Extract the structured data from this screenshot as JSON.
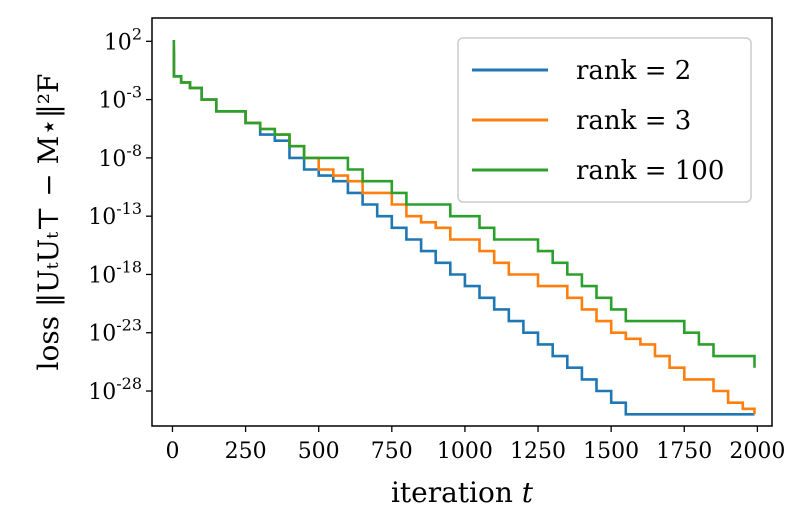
{
  "chart_data": {
    "type": "line",
    "title": "",
    "xlabel": "iteration t",
    "ylabel": "loss ‖UₜUₜ⊤ − M⋆‖²F",
    "ylog": true,
    "xlim": [
      -70,
      2050
    ],
    "ylim": [
      1e-31,
      10000.0
    ],
    "x_ticks": [
      0,
      250,
      500,
      750,
      1000,
      1250,
      1500,
      1750,
      2000
    ],
    "x_tick_labels": [
      "0",
      "250",
      "500",
      "750",
      "1000",
      "1250",
      "1500",
      "1750",
      "2000"
    ],
    "y_ticks": [
      100.0,
      0.001,
      1e-08,
      1e-13,
      1e-18,
      1e-23,
      1e-28
    ],
    "y_tick_labels": [
      {
        "base": "10",
        "exp": "2"
      },
      {
        "base": "10",
        "exp": "-3"
      },
      {
        "base": "10",
        "exp": "-8"
      },
      {
        "base": "10",
        "exp": "-13"
      },
      {
        "base": "10",
        "exp": "-18"
      },
      {
        "base": "10",
        "exp": "-23"
      },
      {
        "base": "10",
        "exp": "-28"
      }
    ],
    "grid": false,
    "legend_position": "top-right",
    "series": [
      {
        "name": "rank = 2",
        "color": "#1f77b4",
        "x": [
          0,
          5,
          30,
          60,
          100,
          150,
          200,
          250,
          300,
          350,
          400,
          450,
          500,
          550,
          600,
          650,
          700,
          750,
          800,
          850,
          900,
          950,
          1000,
          1050,
          1100,
          1150,
          1200,
          1250,
          1300,
          1350,
          1400,
          1450,
          1500,
          1550,
          1600,
          1650,
          1700,
          1750,
          1800,
          1850,
          1900,
          1950,
          1990
        ],
        "y": [
          10.0,
          0.1,
          0.03,
          0.01,
          0.001,
          0.0001,
          0.0001,
          1e-05,
          1e-06,
          3e-07,
          1e-08,
          1e-09,
          3e-10,
          1e-10,
          1e-11,
          1e-12,
          1e-13,
          1e-14,
          1e-15,
          1e-16,
          1e-17,
          1e-18,
          1e-19,
          1e-20,
          1e-21,
          1e-22,
          1e-23,
          1e-24,
          1e-25,
          1e-26,
          1e-27,
          1e-28,
          1e-29,
          1e-30,
          1e-30,
          1e-30,
          1e-30,
          1e-30,
          1e-30,
          1e-30,
          1e-30,
          1e-30,
          1e-30
        ]
      },
      {
        "name": "rank = 3",
        "color": "#ff7f0e",
        "x": [
          0,
          5,
          30,
          60,
          100,
          150,
          200,
          250,
          300,
          350,
          400,
          450,
          500,
          550,
          600,
          650,
          700,
          750,
          800,
          850,
          900,
          950,
          1000,
          1050,
          1100,
          1150,
          1200,
          1250,
          1300,
          1350,
          1400,
          1450,
          1500,
          1550,
          1600,
          1650,
          1700,
          1750,
          1800,
          1850,
          1900,
          1950,
          1990
        ],
        "y": [
          30.0,
          0.1,
          0.03,
          0.01,
          0.001,
          0.0001,
          0.0001,
          1e-05,
          3e-06,
          1e-06,
          1e-07,
          1e-08,
          1e-09,
          3e-10,
          1e-10,
          1e-11,
          1e-11,
          1e-12,
          1e-13,
          3e-14,
          1e-14,
          1e-15,
          1e-15,
          1e-16,
          1e-17,
          1e-18,
          1e-18,
          1e-19,
          1e-19,
          1e-20,
          1e-21,
          1e-22,
          1e-23,
          3e-24,
          1e-24,
          1e-25,
          1e-26,
          1e-27,
          1e-27,
          1e-28,
          1e-29,
          3e-30,
          1e-30
        ]
      },
      {
        "name": "rank = 100",
        "color": "#2ca02c",
        "x": [
          0,
          5,
          30,
          60,
          100,
          150,
          200,
          250,
          300,
          350,
          400,
          450,
          500,
          550,
          600,
          650,
          700,
          750,
          800,
          850,
          900,
          950,
          1000,
          1050,
          1100,
          1150,
          1200,
          1250,
          1300,
          1350,
          1400,
          1450,
          1500,
          1550,
          1600,
          1650,
          1700,
          1750,
          1800,
          1850,
          1900,
          1950,
          1990
        ],
        "y": [
          100.0,
          0.1,
          0.03,
          0.01,
          0.001,
          0.0001,
          0.0001,
          1e-05,
          3e-06,
          1e-06,
          1e-07,
          1e-08,
          1e-08,
          1e-08,
          1e-09,
          1e-10,
          1e-10,
          1e-11,
          1e-12,
          1e-12,
          1e-12,
          1e-13,
          1e-13,
          1e-14,
          1e-15,
          1e-15,
          1e-15,
          1e-16,
          1e-17,
          1e-18,
          1e-19,
          1e-20,
          1e-21,
          1e-22,
          1e-22,
          1e-22,
          1e-22,
          1e-23,
          1e-24,
          1e-25,
          1e-25,
          1e-25,
          1e-26
        ]
      }
    ]
  }
}
